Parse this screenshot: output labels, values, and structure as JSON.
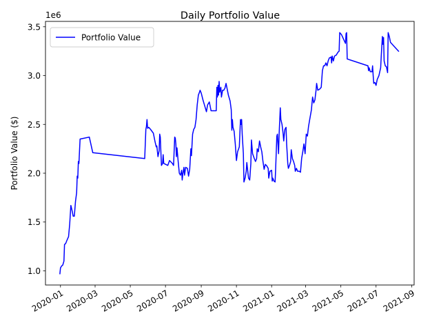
{
  "chart_data": {
    "type": "line",
    "title": "Daily Portfolio Value",
    "xlabel": "",
    "ylabel": "Portfolio Value ($)",
    "y_offset_label": "1e6",
    "y_scale": 1000000,
    "xlim": [
      "2019-12-06",
      "2021-09-05"
    ],
    "ylim": [
      0.855,
      3.555
    ],
    "x_ticks": [
      "2020-01-01",
      "2020-03-01",
      "2020-05-01",
      "2020-07-01",
      "2020-09-01",
      "2020-11-01",
      "2021-01-01",
      "2021-03-01",
      "2021-05-01",
      "2021-07-01",
      "2021-09-01"
    ],
    "x_tick_labels": [
      "2020-01",
      "2020-03",
      "2020-05",
      "2020-07",
      "2020-09",
      "2020-11",
      "2021-01",
      "2021-03",
      "2021-05",
      "2021-07",
      "2021-09"
    ],
    "y_ticks": [
      1.0,
      1.5,
      2.0,
      2.5,
      3.0,
      3.5
    ],
    "y_tick_labels": [
      "1.0",
      "1.5",
      "2.0",
      "2.5",
      "3.0",
      "3.5"
    ],
    "legend": {
      "position": "top-left",
      "entries": [
        "Portfolio Value"
      ]
    },
    "grid": false,
    "series": [
      {
        "name": "Portfolio Value",
        "color": "#0000ff",
        "points": [
          [
            "2019-12-31",
            0.97
          ],
          [
            "2020-01-01",
            1.03
          ],
          [
            "2020-01-03",
            1.05
          ],
          [
            "2020-01-05",
            1.06
          ],
          [
            "2020-01-07",
            1.1
          ],
          [
            "2020-01-08",
            1.27
          ],
          [
            "2020-01-10",
            1.28
          ],
          [
            "2020-01-12",
            1.31
          ],
          [
            "2020-01-15",
            1.35
          ],
          [
            "2020-01-17",
            1.48
          ],
          [
            "2020-01-19",
            1.67
          ],
          [
            "2020-01-21",
            1.62
          ],
          [
            "2020-01-23",
            1.56
          ],
          [
            "2020-01-25",
            1.56
          ],
          [
            "2020-01-27",
            1.71
          ],
          [
            "2020-01-29",
            1.8
          ],
          [
            "2020-01-30",
            1.97
          ],
          [
            "2020-01-31",
            1.95
          ],
          [
            "2020-02-01",
            2.12
          ],
          [
            "2020-02-02",
            2.1
          ],
          [
            "2020-02-03",
            2.23
          ],
          [
            "2020-02-04",
            2.35
          ],
          [
            "2020-02-20",
            2.37
          ],
          [
            "2020-02-26",
            2.21
          ],
          [
            "2020-05-26",
            2.15
          ],
          [
            "2020-05-28",
            2.45
          ],
          [
            "2020-05-29",
            2.48
          ],
          [
            "2020-05-30",
            2.55
          ],
          [
            "2020-05-31",
            2.46
          ],
          [
            "2020-06-02",
            2.47
          ],
          [
            "2020-06-05",
            2.45
          ],
          [
            "2020-06-10",
            2.41
          ],
          [
            "2020-06-13",
            2.32
          ],
          [
            "2020-06-15",
            2.27
          ],
          [
            "2020-06-16",
            2.28
          ],
          [
            "2020-06-18",
            2.17
          ],
          [
            "2020-06-20",
            2.23
          ],
          [
            "2020-06-21",
            2.4
          ],
          [
            "2020-06-22",
            2.37
          ],
          [
            "2020-06-24",
            2.08
          ],
          [
            "2020-06-26",
            2.1
          ],
          [
            "2020-06-27",
            2.19
          ],
          [
            "2020-06-28",
            2.1
          ],
          [
            "2020-07-05",
            2.08
          ],
          [
            "2020-07-08",
            2.13
          ],
          [
            "2020-07-13",
            2.1
          ],
          [
            "2020-07-15",
            2.08
          ],
          [
            "2020-07-17",
            2.37
          ],
          [
            "2020-07-18",
            2.36
          ],
          [
            "2020-07-19",
            2.3
          ],
          [
            "2020-07-20",
            2.17
          ],
          [
            "2020-07-21",
            2.26
          ],
          [
            "2020-07-23",
            2.12
          ],
          [
            "2020-07-25",
            2.0
          ],
          [
            "2020-07-27",
            1.98
          ],
          [
            "2020-07-29",
            2.03
          ],
          [
            "2020-07-30",
            1.93
          ],
          [
            "2020-07-31",
            1.99
          ],
          [
            "2020-08-02",
            2.06
          ],
          [
            "2020-08-03",
            1.98
          ],
          [
            "2020-08-05",
            2.06
          ],
          [
            "2020-08-08",
            2.05
          ],
          [
            "2020-08-10",
            1.97
          ],
          [
            "2020-08-12",
            2.04
          ],
          [
            "2020-08-14",
            2.25
          ],
          [
            "2020-08-15",
            2.18
          ],
          [
            "2020-08-17",
            2.4
          ],
          [
            "2020-08-19",
            2.45
          ],
          [
            "2020-08-21",
            2.47
          ],
          [
            "2020-08-23",
            2.55
          ],
          [
            "2020-08-25",
            2.7
          ],
          [
            "2020-08-27",
            2.8
          ],
          [
            "2020-08-29",
            2.83
          ],
          [
            "2020-08-30",
            2.85
          ],
          [
            "2020-09-01",
            2.82
          ],
          [
            "2020-09-04",
            2.75
          ],
          [
            "2020-09-06",
            2.71
          ],
          [
            "2020-09-08",
            2.67
          ],
          [
            "2020-09-10",
            2.63
          ],
          [
            "2020-09-12",
            2.7
          ],
          [
            "2020-09-15",
            2.73
          ],
          [
            "2020-09-18",
            2.64
          ],
          [
            "2020-09-27",
            2.64
          ],
          [
            "2020-09-28",
            2.88
          ],
          [
            "2020-09-29",
            2.78
          ],
          [
            "2020-09-30",
            2.9
          ],
          [
            "2020-10-01",
            2.8
          ],
          [
            "2020-10-02",
            2.94
          ],
          [
            "2020-10-03",
            2.83
          ],
          [
            "2020-10-05",
            2.88
          ],
          [
            "2020-10-06",
            2.78
          ],
          [
            "2020-10-08",
            2.85
          ],
          [
            "2020-10-10",
            2.85
          ],
          [
            "2020-10-12",
            2.87
          ],
          [
            "2020-10-14",
            2.92
          ],
          [
            "2020-10-16",
            2.86
          ],
          [
            "2020-10-18",
            2.8
          ],
          [
            "2020-10-21",
            2.74
          ],
          [
            "2020-10-23",
            2.65
          ],
          [
            "2020-10-24",
            2.44
          ],
          [
            "2020-10-25",
            2.55
          ],
          [
            "2020-10-26",
            2.47
          ],
          [
            "2020-10-28",
            2.43
          ],
          [
            "2020-10-30",
            2.3
          ],
          [
            "2020-11-01",
            2.13
          ],
          [
            "2020-11-03",
            2.22
          ],
          [
            "2020-11-06",
            2.27
          ],
          [
            "2020-11-08",
            2.55
          ],
          [
            "2020-11-09",
            2.5
          ],
          [
            "2020-11-10",
            2.55
          ],
          [
            "2020-11-11",
            2.4
          ],
          [
            "2020-11-13",
            2.2
          ],
          [
            "2020-11-14",
            1.91
          ],
          [
            "2020-11-16",
            1.95
          ],
          [
            "2020-11-18",
            2.02
          ],
          [
            "2020-11-19",
            2.11
          ],
          [
            "2020-11-21",
            2.0
          ],
          [
            "2020-11-22",
            1.95
          ],
          [
            "2020-11-24",
            1.93
          ],
          [
            "2020-11-26",
            2.1
          ],
          [
            "2020-11-27",
            2.34
          ],
          [
            "2020-11-29",
            2.2
          ],
          [
            "2020-12-02",
            2.15
          ],
          [
            "2020-12-04",
            2.12
          ],
          [
            "2020-12-06",
            2.15
          ],
          [
            "2020-12-07",
            2.25
          ],
          [
            "2020-12-09",
            2.22
          ],
          [
            "2020-12-11",
            2.33
          ],
          [
            "2020-12-13",
            2.27
          ],
          [
            "2020-12-15",
            2.22
          ],
          [
            "2020-12-17",
            2.12
          ],
          [
            "2020-12-19",
            2.04
          ],
          [
            "2020-12-21",
            2.09
          ],
          [
            "2020-12-23",
            2.08
          ],
          [
            "2020-12-26",
            2.05
          ],
          [
            "2020-12-27",
            1.95
          ],
          [
            "2020-12-29",
            2.02
          ],
          [
            "2021-01-01",
            2.03
          ],
          [
            "2021-01-02",
            1.92
          ],
          [
            "2021-01-03",
            1.95
          ],
          [
            "2021-01-05",
            1.92
          ],
          [
            "2021-01-07",
            1.91
          ],
          [
            "2021-01-08",
            2.05
          ],
          [
            "2021-01-10",
            2.38
          ],
          [
            "2021-01-11",
            2.4
          ],
          [
            "2021-01-13",
            2.2
          ],
          [
            "2021-01-14",
            2.4
          ],
          [
            "2021-01-16",
            2.67
          ],
          [
            "2021-01-17",
            2.55
          ],
          [
            "2021-01-19",
            2.5
          ],
          [
            "2021-01-21",
            2.4
          ],
          [
            "2021-01-22",
            2.33
          ],
          [
            "2021-01-23",
            2.4
          ],
          [
            "2021-01-24",
            2.45
          ],
          [
            "2021-01-26",
            2.47
          ],
          [
            "2021-01-27",
            2.3
          ],
          [
            "2021-01-29",
            2.1
          ],
          [
            "2021-01-30",
            2.05
          ],
          [
            "2021-02-01",
            2.08
          ],
          [
            "2021-02-03",
            2.12
          ],
          [
            "2021-02-04",
            2.24
          ],
          [
            "2021-02-06",
            2.15
          ],
          [
            "2021-02-08",
            2.12
          ],
          [
            "2021-02-10",
            2.08
          ],
          [
            "2021-02-11",
            2.02
          ],
          [
            "2021-02-13",
            2.05
          ],
          [
            "2021-02-15",
            2.02
          ],
          [
            "2021-02-18",
            2.02
          ],
          [
            "2021-02-20",
            2.01
          ],
          [
            "2021-02-22",
            2.15
          ],
          [
            "2021-02-24",
            2.22
          ],
          [
            "2021-02-26",
            2.3
          ],
          [
            "2021-02-28",
            2.2
          ],
          [
            "2021-03-02",
            2.4
          ],
          [
            "2021-03-04",
            2.38
          ],
          [
            "2021-03-06",
            2.48
          ],
          [
            "2021-03-08",
            2.55
          ],
          [
            "2021-03-11",
            2.65
          ],
          [
            "2021-03-12",
            2.72
          ],
          [
            "2021-03-13",
            2.78
          ],
          [
            "2021-03-15",
            2.72
          ],
          [
            "2021-03-17",
            2.75
          ],
          [
            "2021-03-19",
            2.85
          ],
          [
            "2021-03-20",
            2.92
          ],
          [
            "2021-03-22",
            2.85
          ],
          [
            "2021-03-25",
            2.86
          ],
          [
            "2021-03-28",
            2.88
          ],
          [
            "2021-03-30",
            3.05
          ],
          [
            "2021-04-01",
            3.1
          ],
          [
            "2021-04-03",
            3.1
          ],
          [
            "2021-04-05",
            3.13
          ],
          [
            "2021-04-07",
            3.1
          ],
          [
            "2021-04-09",
            3.15
          ],
          [
            "2021-04-11",
            3.18
          ],
          [
            "2021-04-14",
            3.19
          ],
          [
            "2021-04-15",
            3.13
          ],
          [
            "2021-04-16",
            3.2
          ],
          [
            "2021-04-18",
            3.15
          ],
          [
            "2021-04-20",
            3.2
          ],
          [
            "2021-04-23",
            3.21
          ],
          [
            "2021-04-26",
            3.24
          ],
          [
            "2021-04-28",
            3.25
          ],
          [
            "2021-04-29",
            3.44
          ],
          [
            "2021-05-02",
            3.42
          ],
          [
            "2021-05-09",
            3.33
          ],
          [
            "2021-05-10",
            3.43
          ],
          [
            "2021-05-11",
            3.44
          ],
          [
            "2021-05-12",
            3.17
          ],
          [
            "2021-06-17",
            3.1
          ],
          [
            "2021-06-18",
            3.05
          ],
          [
            "2021-06-19",
            3.08
          ],
          [
            "2021-06-21",
            3.04
          ],
          [
            "2021-06-24",
            3.04
          ],
          [
            "2021-06-25",
            3.1
          ],
          [
            "2021-06-26",
            3.0
          ],
          [
            "2021-06-27",
            2.92
          ],
          [
            "2021-06-29",
            2.93
          ],
          [
            "2021-07-01",
            2.9
          ],
          [
            "2021-07-03",
            2.96
          ],
          [
            "2021-07-06",
            3.0
          ],
          [
            "2021-07-09",
            3.08
          ],
          [
            "2021-07-10",
            3.2
          ],
          [
            "2021-07-11",
            3.3
          ],
          [
            "2021-07-12",
            3.4
          ],
          [
            "2021-07-13",
            3.32
          ],
          [
            "2021-07-14",
            3.39
          ],
          [
            "2021-07-15",
            3.15
          ],
          [
            "2021-07-17",
            3.1
          ],
          [
            "2021-07-19",
            3.09
          ],
          [
            "2021-07-21",
            3.03
          ],
          [
            "2021-07-22",
            3.44
          ],
          [
            "2021-07-24",
            3.4
          ],
          [
            "2021-07-26",
            3.34
          ],
          [
            "2021-08-09",
            3.25
          ]
        ]
      }
    ]
  }
}
